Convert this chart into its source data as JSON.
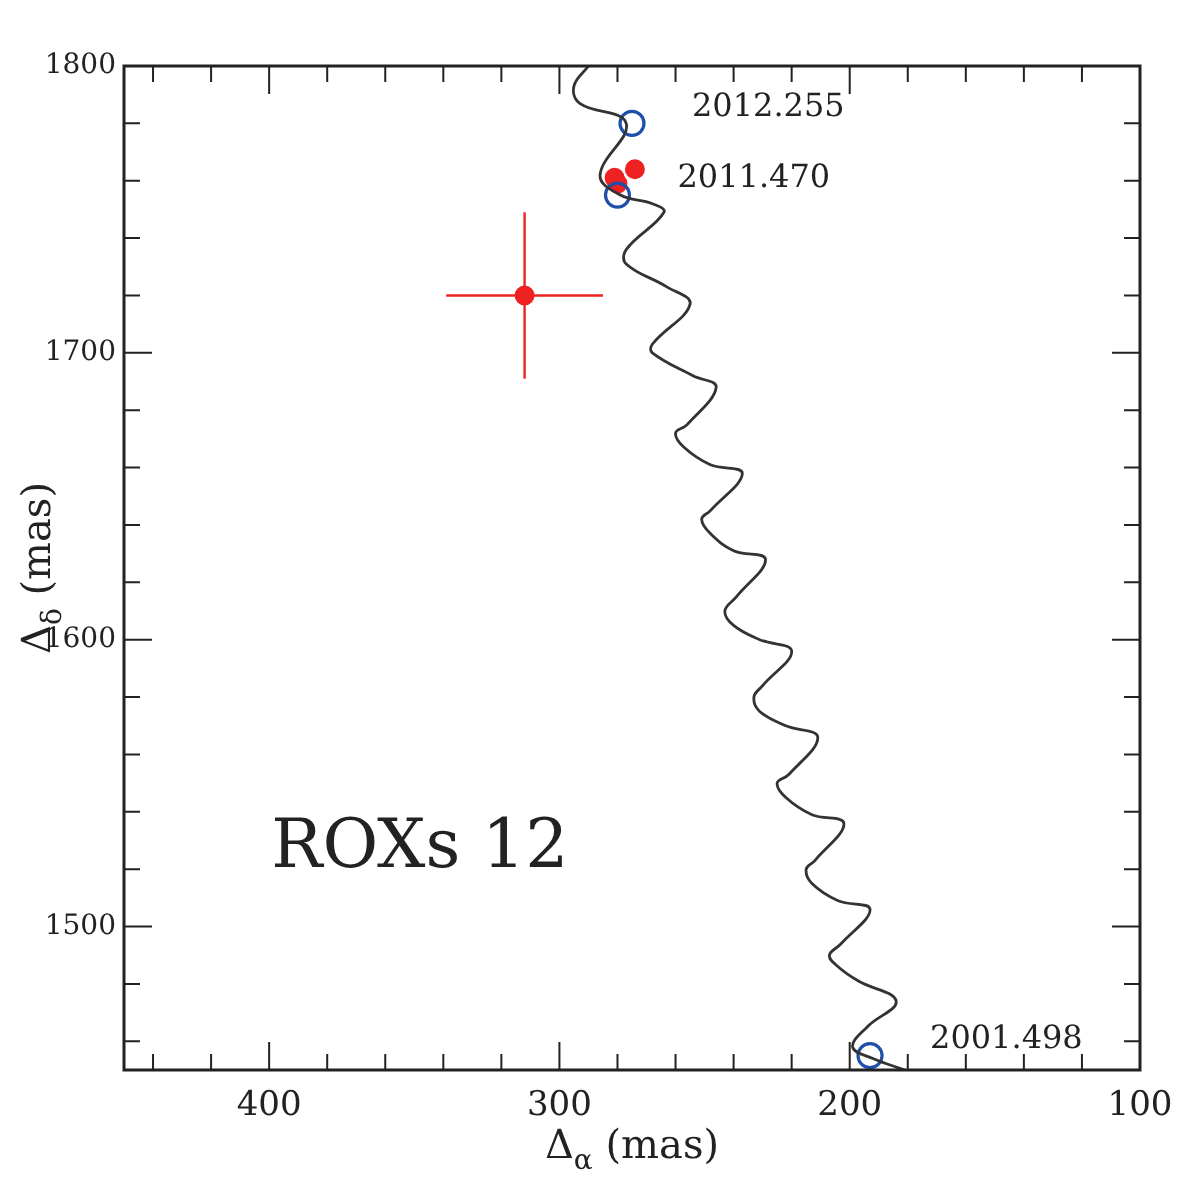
{
  "chart_data": {
    "type": "scatter",
    "xlabel": "Δ$_{α}$ (mas)",
    "ylabel": "Δ$_{δ}$ (mas)",
    "xlim": [
      450,
      100
    ],
    "ylim": [
      1450,
      1800
    ],
    "xticks": [
      {
        "value": 440,
        "label": null
      },
      {
        "value": 420,
        "label": null
      },
      400,
      {
        "value": 380,
        "label": null
      },
      {
        "value": 360,
        "label": null
      },
      {
        "value": 340,
        "label": null
      },
      {
        "value": 320,
        "label": null
      },
      300,
      {
        "value": 280,
        "label": null
      },
      {
        "value": 260,
        "label": null
      },
      {
        "value": 240,
        "label": null
      },
      {
        "value": 220,
        "label": null
      },
      200,
      {
        "value": 180,
        "label": null
      },
      {
        "value": 160,
        "label": null
      },
      {
        "value": 140,
        "label": null
      },
      {
        "value": 120,
        "label": null
      },
      100
    ],
    "yticks": [
      {
        "value": 1460,
        "label": null
      },
      {
        "value": 1480,
        "label": null
      },
      1500,
      {
        "value": 1520,
        "label": null
      },
      {
        "value": 1540,
        "label": null
      },
      {
        "value": 1560,
        "label": null
      },
      {
        "value": 1580,
        "label": null
      },
      1600,
      {
        "value": 1620,
        "label": null
      },
      {
        "value": 1640,
        "label": null
      },
      {
        "value": 1660,
        "label": null
      },
      {
        "value": 1680,
        "label": null
      },
      1700,
      {
        "value": 1720,
        "label": null
      },
      {
        "value": 1740,
        "label": null
      },
      {
        "value": 1760,
        "label": null
      },
      {
        "value": 1780,
        "label": null
      },
      1800
    ],
    "grid": false,
    "legend": false,
    "series": [
      {
        "type": "line",
        "color": "#333333",
        "marker": "none",
        "line_style": "solid",
        "x": [
          290,
          295,
          293,
          277,
          286,
          279,
          268,
          264,
          277,
          277,
          263,
          255,
          268,
          268,
          254,
          246,
          256,
          260,
          257,
          248,
          237,
          248,
          251,
          248,
          240,
          229,
          239,
          243,
          240,
          231,
          220,
          230,
          233,
          231,
          222,
          211,
          221,
          225,
          222,
          213,
          202,
          212,
          215,
          213,
          204,
          193,
          203,
          207,
          204,
          197,
          184,
          194,
          199,
          192,
          181
        ],
        "values": [
          1800,
          1793,
          1787,
          1780,
          1762,
          1755,
          1752,
          1749,
          1736,
          1731,
          1723,
          1717,
          1703,
          1700,
          1692,
          1688,
          1675,
          1672,
          1667,
          1661,
          1658,
          1645,
          1642,
          1637,
          1631,
          1628,
          1615,
          1610,
          1605,
          1600,
          1596,
          1584,
          1580,
          1575,
          1570,
          1566,
          1553,
          1550,
          1545,
          1539,
          1536,
          1523,
          1520,
          1515,
          1509,
          1506,
          1494,
          1490,
          1486,
          1481,
          1474,
          1465,
          1458,
          1454,
          1450
        ]
      },
      {
        "type": "scatter",
        "color": "#1f4fa8",
        "marker": "circle",
        "x": [
          275,
          280,
          193
        ],
        "values": [
          1780,
          1755,
          1455
        ]
      },
      {
        "type": "scatter",
        "color": "#ee2222",
        "marker": "circle",
        "x": [
          281,
          280,
          274,
          312
        ],
        "values": [
          1761,
          1759,
          1764,
          1720
        ],
        "xerrors": [
          null,
          null,
          null,
          27
        ],
        "errors": [
          null,
          null,
          null,
          29
        ]
      }
    ],
    "annotations": [
      "ROXs 12",
      {
        "text": "2012.255",
        "x": 275,
        "y": 1780
      },
      {
        "text": "2011.470",
        "x": 280,
        "y": 1755
      },
      {
        "text": "2001.498",
        "x": 193,
        "y": 1455
      }
    ]
  }
}
